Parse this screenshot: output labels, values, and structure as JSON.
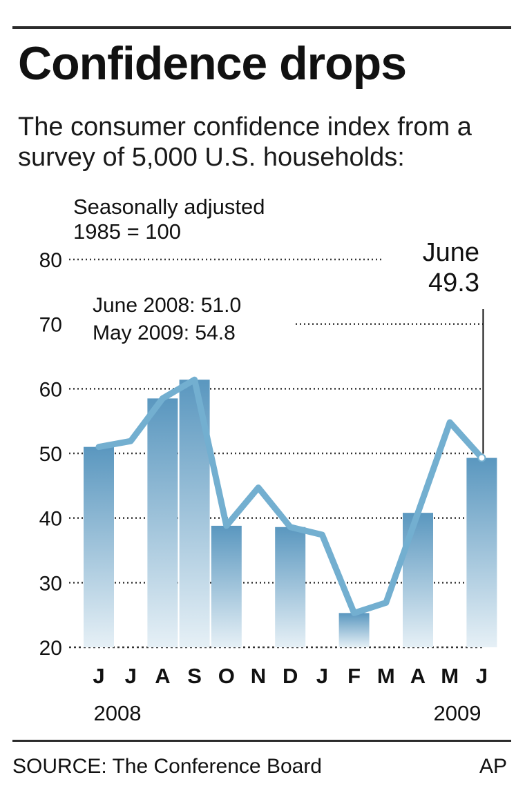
{
  "title": "Confidence drops",
  "subtitle": "The consumer confidence index from a survey of 5,000 U.S. households:",
  "chart_data": {
    "type": "bar",
    "note_lines": [
      "Seasonally adjusted",
      "1985 = 100"
    ],
    "categories": [
      "J",
      "J",
      "A",
      "S",
      "O",
      "N",
      "D",
      "J",
      "F",
      "M",
      "A",
      "M",
      "J"
    ],
    "bar_values": [
      51.0,
      null,
      58.5,
      61.4,
      38.8,
      null,
      38.6,
      null,
      25.3,
      null,
      40.8,
      null,
      49.3
    ],
    "line_values": [
      51.0,
      51.9,
      58.5,
      61.4,
      38.8,
      44.7,
      38.6,
      37.4,
      25.3,
      26.9,
      40.8,
      54.8,
      49.3
    ],
    "ylim": [
      20,
      80
    ],
    "yticks": [
      "80",
      "70",
      "60",
      "50",
      "40",
      "30",
      "20"
    ],
    "year_labels": [
      "2008",
      "2009"
    ],
    "annotation_lines": [
      "June 2008: 51.0",
      "May 2009: 54.8"
    ],
    "callout_lines": [
      "June",
      "49.3"
    ],
    "grid": true,
    "legend": "none"
  },
  "footer": {
    "source": "SOURCE: The Conference Board",
    "credit": "AP"
  }
}
